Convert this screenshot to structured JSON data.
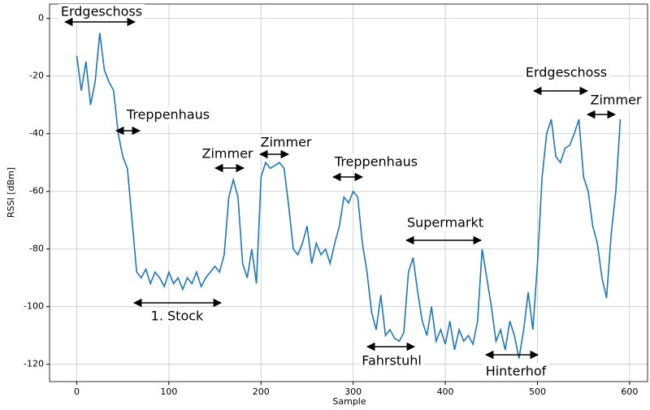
{
  "chart_data": {
    "type": "line",
    "xlabel": "Sample",
    "ylabel": "RSSI [dBm]",
    "x": [
      0,
      5,
      10,
      15,
      20,
      25,
      30,
      35,
      40,
      45,
      50,
      55,
      60,
      65,
      70,
      75,
      80,
      85,
      90,
      95,
      100,
      105,
      110,
      115,
      120,
      125,
      130,
      135,
      140,
      145,
      150,
      155,
      160,
      165,
      170,
      175,
      180,
      185,
      190,
      195,
      200,
      205,
      210,
      215,
      220,
      225,
      230,
      235,
      240,
      245,
      250,
      255,
      260,
      265,
      270,
      275,
      280,
      285,
      290,
      295,
      300,
      305,
      310,
      315,
      320,
      325,
      330,
      335,
      340,
      345,
      350,
      355,
      360,
      365,
      370,
      375,
      380,
      385,
      390,
      395,
      400,
      405,
      410,
      415,
      420,
      425,
      430,
      435,
      440,
      445,
      450,
      455,
      460,
      465,
      470,
      475,
      480,
      485,
      490,
      495,
      500,
      505,
      510,
      515,
      520,
      525,
      530,
      535,
      540,
      545,
      550,
      555,
      560,
      565,
      570,
      575,
      580,
      585,
      590
    ],
    "series": [
      {
        "color": "#1f77b4",
        "values": [
          -13,
          -25,
          -15,
          -30,
          -22,
          -5,
          -18,
          -22,
          -25,
          -40,
          -48,
          -52,
          -70,
          -88,
          -90,
          -87,
          -92,
          -88,
          -90,
          -93,
          -88,
          -92,
          -90,
          -94,
          -90,
          -92,
          -88,
          -93,
          -90,
          -88,
          -86,
          -88,
          -82,
          -62,
          -56,
          -62,
          -85,
          -90,
          -80,
          -92,
          -55,
          -50,
          -52,
          -51,
          -50,
          -52,
          -65,
          -80,
          -82,
          -78,
          -72,
          -85,
          -78,
          -82,
          -80,
          -85,
          -78,
          -72,
          -62,
          -64,
          -60,
          -62,
          -78,
          -88,
          -102,
          -108,
          -96,
          -110,
          -108,
          -111,
          -112,
          -109,
          -88,
          -83,
          -95,
          -105,
          -110,
          -100,
          -112,
          -108,
          -113,
          -105,
          -115,
          -108,
          -112,
          -110,
          -113,
          -105,
          -80,
          -90,
          -100,
          -112,
          -108,
          -115,
          -105,
          -110,
          -118,
          -108,
          -95,
          -108,
          -85,
          -55,
          -40,
          -35,
          -48,
          -50,
          -45,
          -44,
          -40,
          -35,
          -55,
          -60,
          -72,
          -78,
          -90,
          -97,
          -75,
          -60,
          -35
        ]
      }
    ],
    "xlim": [
      -29.5,
      619.5
    ],
    "ylim": [
      -126,
      5
    ],
    "xticks": [
      0,
      100,
      200,
      300,
      400,
      500,
      600
    ],
    "yticks": [
      -120,
      -100,
      -80,
      -60,
      -40,
      -20,
      0
    ],
    "grid": true,
    "annotations": [
      "Erdgeschoss",
      "Treppenhaus",
      "Zimmer",
      "Zimmer",
      "Treppenhaus",
      "Supermarkt",
      "1. Stock",
      "Fahrstuhl",
      "Hinterhof",
      "Erdgeschoss",
      "Zimmer"
    ]
  }
}
